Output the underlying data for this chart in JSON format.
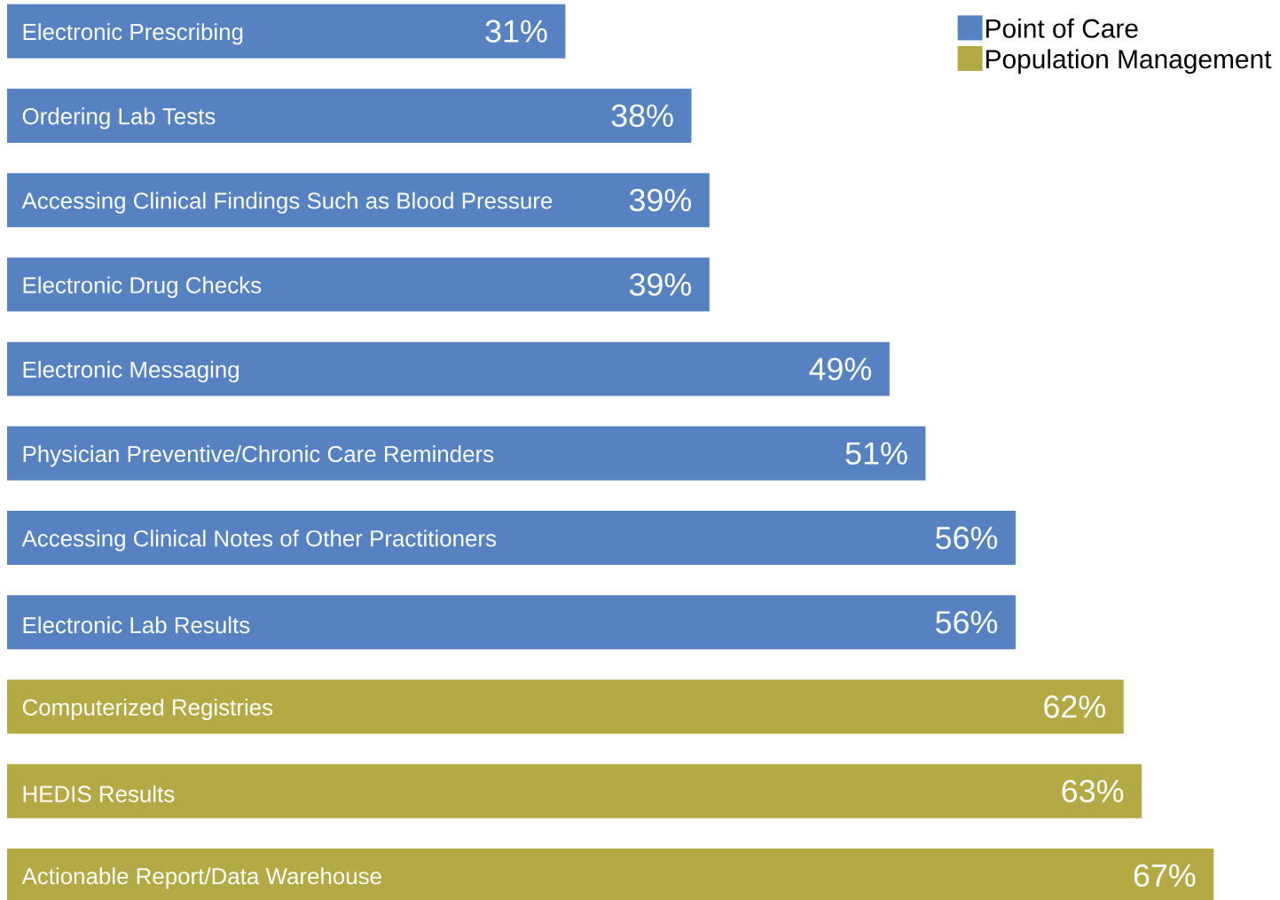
{
  "chart_data": {
    "type": "bar",
    "orientation": "horizontal",
    "categories": [
      "Electronic Prescribing",
      "Ordering Lab Tests",
      "Accessing Clinical Findings Such as Blood Pressure",
      "Electronic Drug Checks",
      "Electronic Messaging",
      "Physician Preventive/Chronic Care Reminders",
      "Accessing Clinical Notes of Other Practitioners",
      "Electronic Lab Results",
      "Computerized Registries",
      "HEDIS Results",
      "Actionable Report/Data Warehouse"
    ],
    "series": [
      {
        "name": "Point of Care",
        "color": "#5682c2",
        "values": [
          31,
          38,
          39,
          39,
          49,
          51,
          56,
          56,
          null,
          null,
          null
        ],
        "value_labels": [
          "31%",
          "38%",
          "39%",
          "39%",
          "49%",
          "51%",
          "56%",
          "56%",
          null,
          null,
          null
        ]
      },
      {
        "name": "Population Management",
        "color": "#b3aa45",
        "values": [
          null,
          null,
          null,
          null,
          null,
          null,
          null,
          null,
          62,
          63,
          67
        ],
        "value_labels": [
          null,
          null,
          null,
          null,
          null,
          null,
          null,
          null,
          "62%",
          "63%",
          "67%"
        ]
      }
    ],
    "legend": "top right"
  }
}
